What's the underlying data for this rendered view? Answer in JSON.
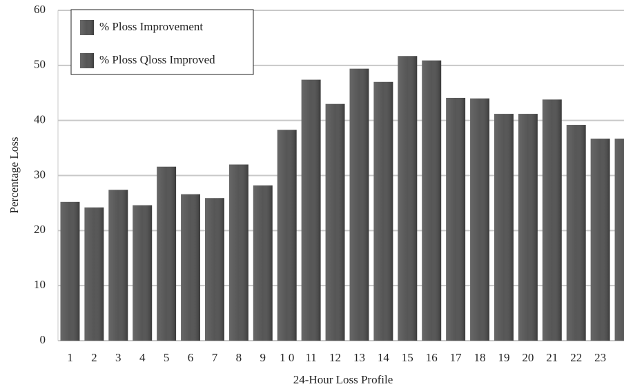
{
  "chart_data": {
    "type": "bar",
    "y_label": "Percentage Loss",
    "x_label": "24-Hour Loss Profile",
    "categories": [
      "1",
      "2",
      "3",
      "4",
      "5",
      "6",
      "7",
      "8",
      "9",
      "1 0",
      "11",
      "12",
      "13",
      "14",
      "15",
      "16",
      "17",
      "18",
      "19",
      "20",
      "21",
      "22",
      "23",
      null
    ],
    "series": [
      {
        "name": "% Ploss Improvement",
        "color": "#4d4d4d",
        "values": [
          25.2,
          24.2,
          27.4,
          24.6,
          31.6,
          26.6,
          25.9,
          32,
          28.2,
          38.3,
          47.4,
          43,
          49.4,
          47,
          51.7,
          50.9,
          44.1,
          44,
          41.2,
          41.2,
          43.8,
          39.2,
          36.7,
          36.7
        ]
      },
      {
        "name": "% Ploss Qloss Improved",
        "color": "#4d4d4d",
        "values": [
          null,
          null,
          null,
          null,
          null,
          null,
          null,
          null,
          null,
          null,
          null,
          null,
          null,
          null,
          null,
          null,
          null,
          null,
          null,
          null,
          null,
          null,
          null,
          null
        ]
      }
    ],
    "ylim": [
      0,
      60
    ],
    "yticks": [
      0,
      10,
      20,
      30,
      40,
      50,
      60
    ],
    "grid": true,
    "legend": "top-left"
  }
}
